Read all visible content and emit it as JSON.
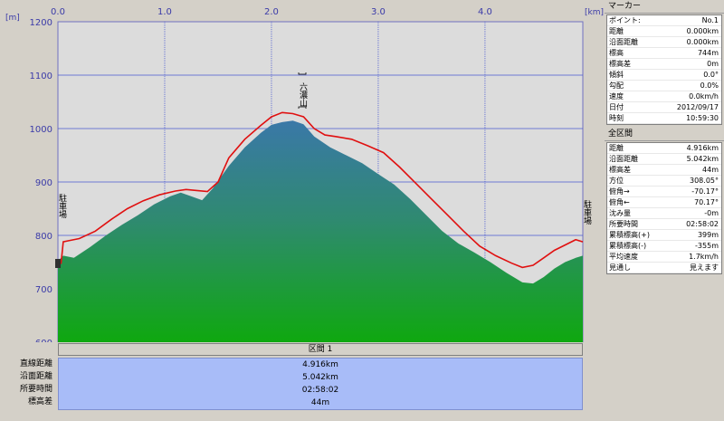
{
  "chart_data": {
    "type": "area",
    "xunit": "[km]",
    "yunit": "[m]",
    "xlim": [
      0,
      4.916
    ],
    "ylim": [
      600,
      1200
    ],
    "xticks": [
      0.0,
      1.0,
      2.0,
      3.0,
      4.0
    ],
    "xtick_labels": [
      "0.0",
      "1.0",
      "2.0",
      "3.0",
      "4.0"
    ],
    "yticks": [
      600,
      700,
      800,
      900,
      1000,
      1100,
      1200
    ],
    "ytick_labels": [
      "600",
      "700",
      "800",
      "900",
      "1000",
      "1100",
      "1200"
    ],
    "grid": true,
    "series": [
      {
        "values_x": [
          0.0,
          0.05,
          0.15,
          0.3,
          0.45,
          0.6,
          0.75,
          0.9,
          1.05,
          1.15,
          1.25,
          1.35,
          1.45,
          1.6,
          1.75,
          1.9,
          2.0,
          2.1,
          2.2,
          2.3,
          2.4,
          2.55,
          2.7,
          2.85,
          3.0,
          3.15,
          3.3,
          3.45,
          3.6,
          3.75,
          3.9,
          4.05,
          4.2,
          4.35,
          4.45,
          4.55,
          4.65,
          4.75,
          4.85,
          4.916
        ],
        "values_y": [
          752,
          762,
          758,
          778,
          800,
          820,
          838,
          858,
          873,
          880,
          873,
          866,
          888,
          930,
          965,
          992,
          1007,
          1012,
          1015,
          1008,
          985,
          965,
          950,
          935,
          915,
          895,
          868,
          838,
          808,
          785,
          768,
          750,
          730,
          712,
          710,
          722,
          738,
          750,
          758,
          762
        ]
      },
      {
        "values_x": [
          0.0,
          0.03,
          0.05,
          0.1,
          0.2,
          0.35,
          0.5,
          0.65,
          0.8,
          0.95,
          1.1,
          1.2,
          1.3,
          1.4,
          1.5,
          1.6,
          1.75,
          1.9,
          2.0,
          2.1,
          2.2,
          2.3,
          2.4,
          2.5,
          2.6,
          2.75,
          2.9,
          3.05,
          3.2,
          3.35,
          3.5,
          3.65,
          3.8,
          3.95,
          4.1,
          4.25,
          4.35,
          4.45,
          4.55,
          4.65,
          4.75,
          4.85,
          4.916
        ],
        "values_y": [
          744,
          748,
          788,
          790,
          794,
          808,
          830,
          850,
          865,
          876,
          883,
          886,
          884,
          882,
          900,
          945,
          980,
          1006,
          1022,
          1030,
          1028,
          1022,
          1000,
          988,
          985,
          980,
          968,
          955,
          928,
          898,
          868,
          838,
          808,
          780,
          762,
          748,
          740,
          744,
          758,
          772,
          782,
          792,
          788
        ]
      }
    ],
    "annotations": [
      "六濃山",
      "駐車場",
      "駐車場"
    ]
  },
  "summary": {
    "header": "区間 1",
    "rows": [
      {
        "label": "直線距離",
        "value": "4.916km"
      },
      {
        "label": "沿面距離",
        "value": "5.042km"
      },
      {
        "label": "所要時間",
        "value": "02:58:02"
      },
      {
        "label": "標高差",
        "value": "44m"
      }
    ]
  },
  "marker_panel": {
    "title": "マーカー",
    "rows": [
      {
        "label": "ポイント:",
        "value": "No.1"
      },
      {
        "label": "距離",
        "value": "0.000km"
      },
      {
        "label": "沿面距離",
        "value": "0.000km"
      },
      {
        "label": "標高",
        "value": "744m"
      },
      {
        "label": "標高差",
        "value": "0m"
      },
      {
        "label": "傾斜",
        "value": "0.0°"
      },
      {
        "label": "勾配",
        "value": "0.0%"
      },
      {
        "label": "速度",
        "value": "0.0km/h"
      },
      {
        "label": "日付",
        "value": "2012/09/17"
      },
      {
        "label": "時刻",
        "value": "10:59:30"
      }
    ]
  },
  "section_panel": {
    "title": "全区間",
    "rows": [
      {
        "label": "距離",
        "value": "4.916km"
      },
      {
        "label": "沿面距離",
        "value": "5.042km"
      },
      {
        "label": "標高差",
        "value": "44m"
      },
      {
        "label": "方位",
        "value": "308.05°"
      },
      {
        "label": "俯角→",
        "value": "-70.17°"
      },
      {
        "label": "俯角←",
        "value": "70.17°"
      },
      {
        "label": "沈み量",
        "value": "-0m"
      },
      {
        "label": "所要時間",
        "value": "02:58:02"
      },
      {
        "label": "累積標高(+)",
        "value": "399m"
      },
      {
        "label": "累積標高(-)",
        "value": "-355m"
      },
      {
        "label": "平均速度",
        "value": "1.7km/h"
      },
      {
        "label": "見通し",
        "value": "見えます"
      }
    ]
  },
  "colors": {
    "plot_bg": "#dcdcdc",
    "grid": "#4a5ad0",
    "terrain_top": "#3a7aa0",
    "terrain_bottom": "#10a010",
    "track": "#e01010"
  }
}
